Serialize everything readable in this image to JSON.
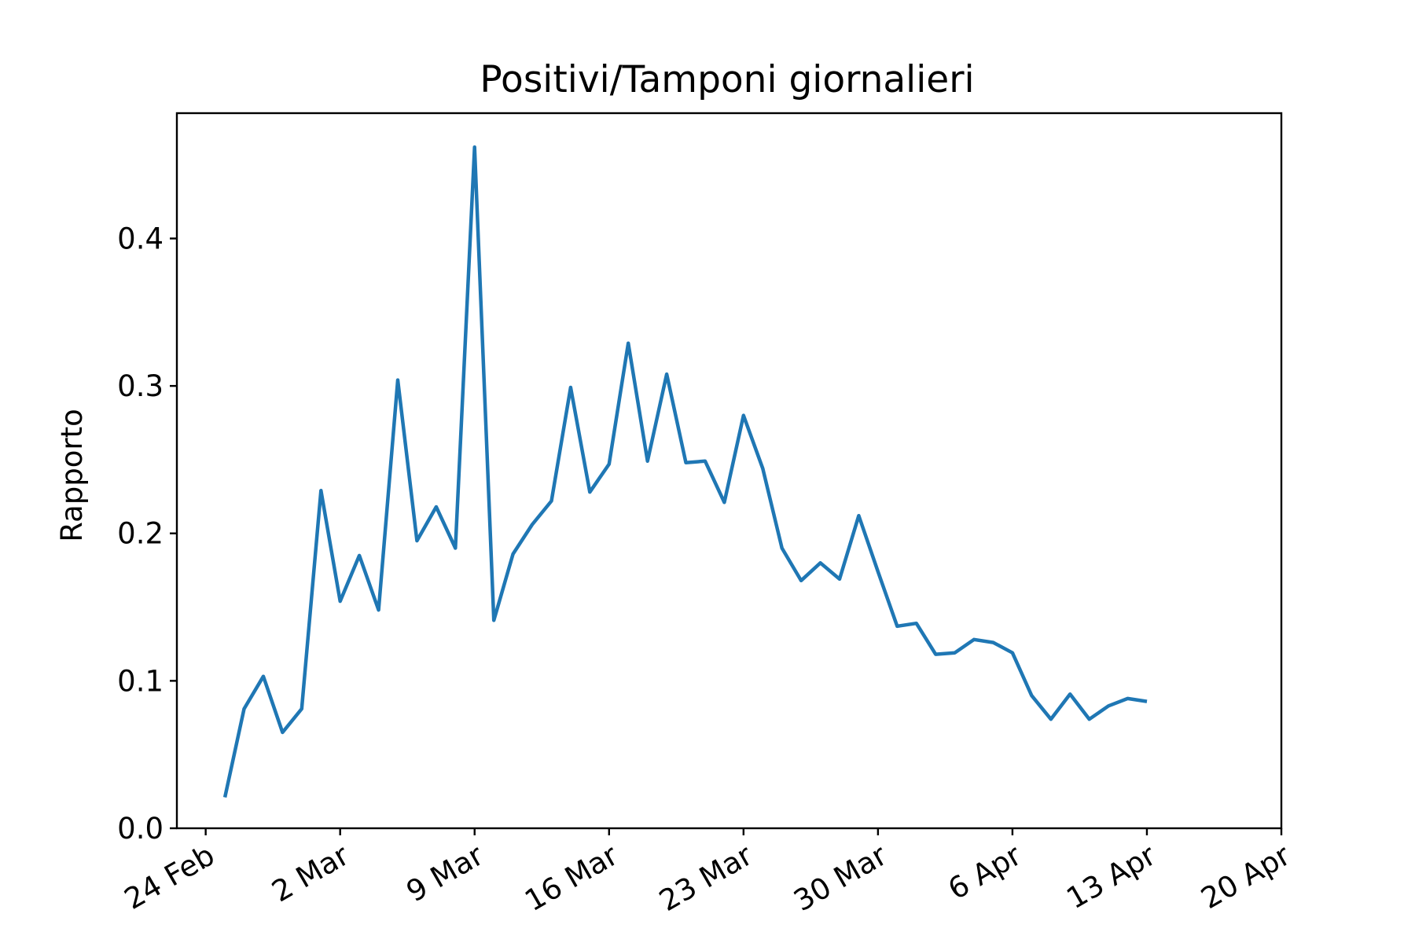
{
  "chart_data": {
    "type": "line",
    "title": "Positivi/Tamponi giornalieri",
    "xlabel": "",
    "ylabel": "Rapporto",
    "x_start": "2020-02-25",
    "xlim": [
      "2020-02-22T12:00",
      "2020-04-20"
    ],
    "ylim": [
      0,
      0.485
    ],
    "grid": false,
    "x_ticks": [
      {
        "date": "2020-02-24",
        "label": "24 Feb"
      },
      {
        "date": "2020-03-02",
        "label": "2 Mar"
      },
      {
        "date": "2020-03-09",
        "label": "9 Mar"
      },
      {
        "date": "2020-03-16",
        "label": "16 Mar"
      },
      {
        "date": "2020-03-23",
        "label": "23 Mar"
      },
      {
        "date": "2020-03-30",
        "label": "30 Mar"
      },
      {
        "date": "2020-04-06",
        "label": "6 Apr"
      },
      {
        "date": "2020-04-13",
        "label": "13 Apr"
      },
      {
        "date": "2020-04-20",
        "label": "20 Apr"
      }
    ],
    "y_ticks": [
      {
        "value": 0.0,
        "label": "0.0"
      },
      {
        "value": 0.1,
        "label": "0.1"
      },
      {
        "value": 0.2,
        "label": "0.2"
      },
      {
        "value": 0.3,
        "label": "0.3"
      },
      {
        "value": 0.4,
        "label": "0.4"
      }
    ],
    "series": [
      {
        "color": "#1f77b4",
        "values": [
          0.021,
          0.081,
          0.103,
          0.065,
          0.081,
          0.229,
          0.154,
          0.185,
          0.148,
          0.304,
          0.195,
          0.218,
          0.19,
          0.462,
          0.141,
          0.186,
          0.206,
          0.222,
          0.299,
          0.228,
          0.247,
          0.329,
          0.249,
          0.308,
          0.248,
          0.249,
          0.221,
          0.28,
          0.244,
          0.19,
          0.168,
          0.18,
          0.169,
          0.212,
          0.174,
          0.137,
          0.139,
          0.118,
          0.119,
          0.128,
          0.126,
          0.119,
          0.09,
          0.074,
          0.091,
          0.074,
          0.083,
          0.088,
          0.086
        ]
      }
    ]
  }
}
